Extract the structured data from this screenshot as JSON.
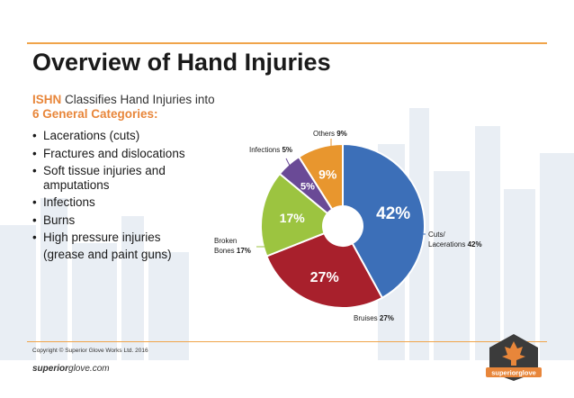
{
  "slide": {
    "title": "Overview of Hand Injuries",
    "subtitle_brand": "ISHN",
    "subtitle_text": " Classifies Hand Injuries into",
    "subtitle_categories": "6 General Categories:",
    "bullets": [
      {
        "text": "Lacerations (cuts)"
      },
      {
        "text": "Fractures and dislocations"
      },
      {
        "text": "Soft tissue injuries and",
        "cont": "amputations"
      },
      {
        "text": "Infections"
      },
      {
        "text": "Burns"
      },
      {
        "text": "High pressure injuries"
      }
    ],
    "bullet_cont": "(grease and paint guns)",
    "copyright": "Copyright © Superior Glove Works Ltd. 2016",
    "site_brand": "superior",
    "site_rest": "glove.com",
    "logo_text": "superiorglove"
  },
  "colors": {
    "accent": "#e8863a",
    "rule": "#f0a44a",
    "cuts": "#3c6fb8",
    "bruises": "#a8202c",
    "broken": "#9cc440",
    "infections": "#6a4a96",
    "others": "#e8962e"
  },
  "chart_data": {
    "type": "pie",
    "style": "donut",
    "categories": [
      "Cuts/ Lacerations",
      "Bruises",
      "Broken Bones",
      "Infections",
      "Others"
    ],
    "values": [
      42,
      27,
      17,
      5,
      9
    ],
    "unit": "%",
    "slice_labels": [
      "42%",
      "27%",
      "17%",
      "5%",
      "9%"
    ],
    "callouts": [
      {
        "line1": "Cuts/",
        "line2": "Lacerations",
        "value": "42%"
      },
      {
        "line1": "Bruises",
        "value": "27%"
      },
      {
        "line1": "Broken",
        "line2": "Bones",
        "value": "17%"
      },
      {
        "line1": "Infections",
        "value": "5%"
      },
      {
        "line1": "Others",
        "value": "9%"
      }
    ]
  }
}
